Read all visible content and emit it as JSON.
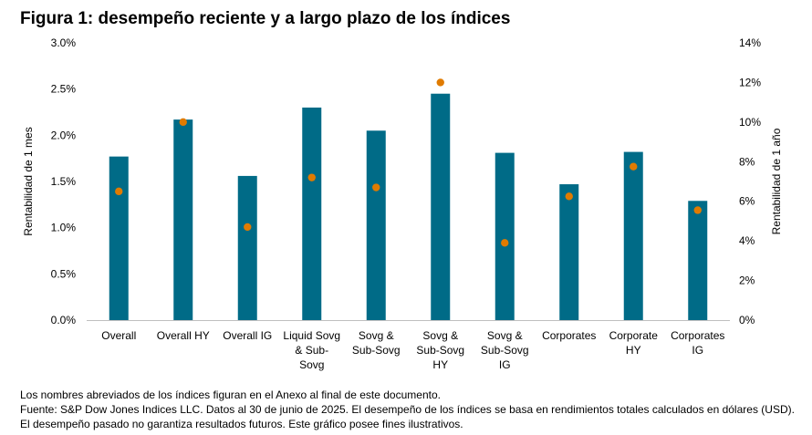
{
  "title": "Figura 1: desempeño reciente y a largo plazo de los índices",
  "notes": {
    "line1": "Los nombres abreviados de los índices figuran en el Anexo al final de este documento.",
    "line2": "Fuente: S&P Dow Jones Indices LLC. Datos al 30 de junio de 2025. El desempeño de los índices se basa en rendimientos totales calculados en dólares (USD). El desempeño pasado no garantiza resultados futuros. Este gráfico posee fines ilustrativos."
  },
  "colors": {
    "bar": "#006B87",
    "dot": "#E07B00",
    "axis": "#BFBFBF"
  },
  "chart_data": {
    "type": "bar",
    "categories": [
      [
        "Overall"
      ],
      [
        "Overall HY"
      ],
      [
        "Overall IG"
      ],
      [
        "Liquid Sovg",
        "& Sub-",
        "Sovg"
      ],
      [
        "Sovg &",
        "Sub-Sovg"
      ],
      [
        "Sovg &",
        "Sub-Sovg",
        "HY"
      ],
      [
        "Sovg &",
        "Sub-Sovg",
        "IG"
      ],
      [
        "Corporates"
      ],
      [
        "Corporate",
        "HY"
      ],
      [
        "Corporates",
        "IG"
      ]
    ],
    "series": [
      {
        "type": "bar",
        "axis": "left",
        "values": [
          1.77,
          2.17,
          1.56,
          2.3,
          2.05,
          2.45,
          1.81,
          1.47,
          1.82,
          1.29
        ]
      },
      {
        "type": "scatter",
        "axis": "right",
        "values": [
          6.5,
          10.0,
          4.7,
          7.2,
          6.7,
          12.0,
          3.9,
          6.25,
          7.75,
          5.55
        ]
      }
    ],
    "ylabel": "Rentabilidad de 1 mes",
    "y2label": "Rentabilidad de 1 año",
    "ylim": [
      0,
      3.0
    ],
    "y2lim": [
      0,
      14
    ],
    "yticks": [
      "0.0%",
      "0.5%",
      "1.0%",
      "1.5%",
      "2.0%",
      "2.5%",
      "3.0%"
    ],
    "y2ticks": [
      "0%",
      "2%",
      "4%",
      "6%",
      "8%",
      "10%",
      "12%",
      "14%"
    ],
    "grid": false,
    "legend": "none"
  }
}
